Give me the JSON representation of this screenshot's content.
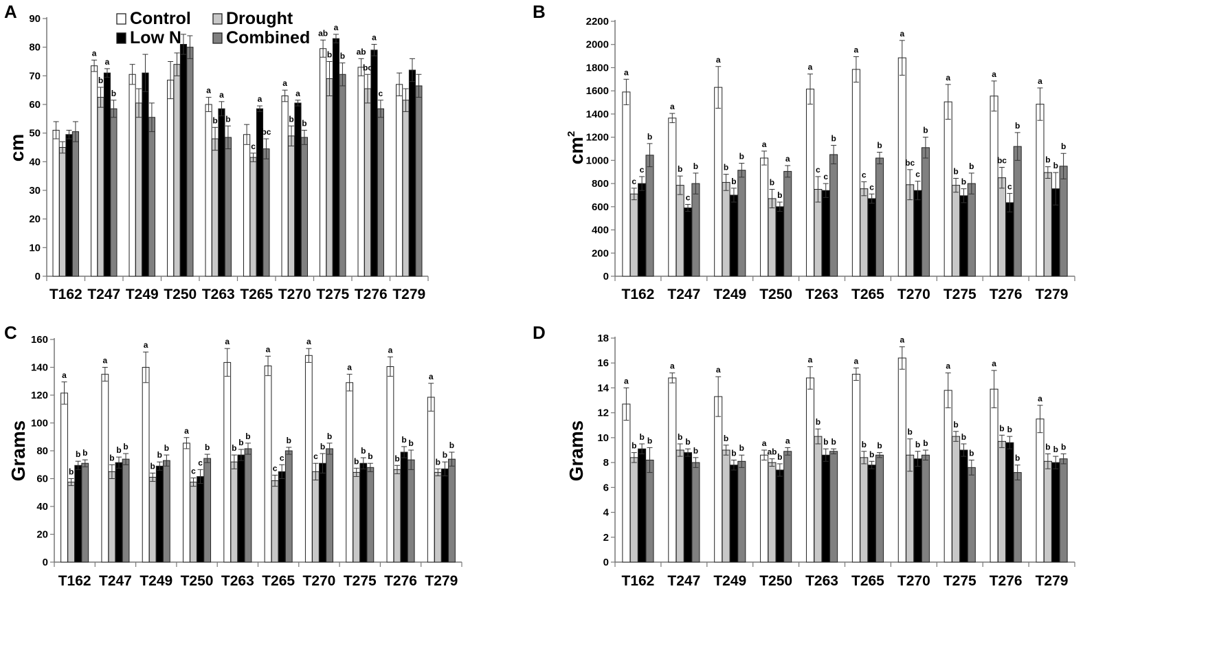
{
  "figure": {
    "series_names": [
      "Control",
      "Drought",
      "Low N",
      "Combined"
    ],
    "series_colors": [
      "#ffffff",
      "#c8c8c8",
      "#000000",
      "#808080"
    ]
  },
  "chart_data": [
    {
      "panel": "A",
      "type": "bar",
      "ylabel": "cm",
      "ylim": [
        0,
        90
      ],
      "yticks": [
        0,
        10,
        20,
        30,
        40,
        50,
        60,
        70,
        80,
        90
      ],
      "categories": [
        "T162",
        "T247",
        "T249",
        "T250",
        "T263",
        "T265",
        "T270",
        "T275",
        "T276",
        "T279"
      ],
      "legend": [
        "Control",
        "Drought",
        "Low N",
        "Combined"
      ],
      "series": [
        {
          "name": "Control",
          "values": [
            51,
            73.5,
            70.5,
            68.5,
            60,
            49.5,
            63,
            79.5,
            73,
            67
          ],
          "errors": [
            3,
            2,
            3.5,
            6.5,
            2.5,
            3.5,
            2,
            3,
            3,
            4
          ],
          "labels": [
            "",
            "a",
            "",
            "",
            "a",
            "",
            "a",
            "ab",
            "ab",
            ""
          ]
        },
        {
          "name": "Drought",
          "values": [
            45,
            62.5,
            60.5,
            74,
            48,
            41.5,
            49,
            69,
            65.5,
            61.5
          ],
          "errors": [
            2,
            3.5,
            5,
            4,
            4,
            1.5,
            3.5,
            6,
            5,
            4
          ],
          "labels": [
            "",
            "b",
            "",
            "",
            "b",
            "c",
            "b",
            "b",
            "bc",
            ""
          ]
        },
        {
          "name": "Low N",
          "values": [
            49.5,
            71,
            71,
            81,
            58.5,
            58.5,
            60.5,
            83,
            79,
            72
          ],
          "errors": [
            1.5,
            1.5,
            6.5,
            3.5,
            2.5,
            1,
            1,
            1.5,
            2,
            4
          ],
          "labels": [
            "",
            "a",
            "",
            "",
            "a",
            "a",
            "a",
            "a",
            "a",
            ""
          ]
        },
        {
          "name": "Combined",
          "values": [
            50.5,
            58.5,
            55.5,
            80,
            48.5,
            44.5,
            48.5,
            70.5,
            58.5,
            66.5
          ],
          "errors": [
            3.5,
            3,
            5,
            4,
            4,
            3.5,
            2.5,
            4,
            3,
            4
          ],
          "labels": [
            "",
            "b",
            "",
            "",
            "b",
            "bc",
            "b",
            "b",
            "c",
            ""
          ]
        }
      ]
    },
    {
      "panel": "B",
      "type": "bar",
      "ylabel": "cm²",
      "ylim": [
        0,
        2200
      ],
      "yticks": [
        0,
        200,
        400,
        600,
        800,
        1000,
        1200,
        1400,
        1600,
        1800,
        2000,
        2200
      ],
      "categories": [
        "T162",
        "T247",
        "T249",
        "T250",
        "T263",
        "T265",
        "T270",
        "T275",
        "T276",
        "T279"
      ],
      "series": [
        {
          "name": "Control",
          "values": [
            1590,
            1365,
            1630,
            1020,
            1615,
            1785,
            1885,
            1505,
            1555,
            1485
          ],
          "errors": [
            110,
            40,
            180,
            60,
            130,
            110,
            150,
            150,
            130,
            140
          ],
          "labels": [
            "a",
            "a",
            "a",
            "a",
            "a",
            "a",
            "a",
            "a",
            "a",
            "a"
          ]
        },
        {
          "name": "Drought",
          "values": [
            710,
            785,
            810,
            670,
            750,
            755,
            790,
            785,
            850,
            895
          ],
          "errors": [
            50,
            80,
            70,
            80,
            110,
            60,
            130,
            60,
            90,
            50
          ],
          "labels": [
            "c",
            "b",
            "b",
            "b",
            "c",
            "c",
            "bc",
            "b",
            "bc",
            "b"
          ]
        },
        {
          "name": "Low N",
          "values": [
            800,
            590,
            700,
            600,
            740,
            670,
            740,
            695,
            635,
            755
          ],
          "errors": [
            60,
            30,
            60,
            40,
            60,
            40,
            80,
            60,
            80,
            140
          ],
          "labels": [
            "c",
            "c",
            "b",
            "b",
            "c",
            "c",
            "c",
            "b",
            "c",
            "b"
          ]
        },
        {
          "name": "Combined",
          "values": [
            1045,
            800,
            915,
            905,
            1050,
            1020,
            1110,
            800,
            1120,
            950
          ],
          "errors": [
            100,
            90,
            60,
            50,
            80,
            50,
            90,
            90,
            120,
            110
          ],
          "labels": [
            "b",
            "b",
            "b",
            "a",
            "b",
            "b",
            "b",
            "b",
            "b",
            "b"
          ]
        }
      ]
    },
    {
      "panel": "C",
      "type": "bar",
      "ylabel": "Grams",
      "ylim": [
        0,
        160
      ],
      "yticks": [
        0,
        20,
        40,
        60,
        80,
        100,
        120,
        140,
        160
      ],
      "categories": [
        "T162",
        "T247",
        "T249",
        "T250",
        "T263",
        "T265",
        "T270",
        "T275",
        "T276",
        "T279"
      ],
      "series": [
        {
          "name": "Control",
          "values": [
            121.5,
            135,
            140,
            85.5,
            143.5,
            141,
            148.5,
            129,
            140.5,
            118.5
          ],
          "errors": [
            8,
            5,
            11,
            4,
            10,
            7,
            5,
            6,
            7,
            10
          ],
          "labels": [
            "a",
            "a",
            "a",
            "a",
            "a",
            "a",
            "a",
            "a",
            "a",
            "a"
          ]
        },
        {
          "name": "Drought",
          "values": [
            57.5,
            65,
            61,
            57.5,
            72,
            58.5,
            65,
            64.5,
            66.5,
            64.5
          ],
          "errors": [
            2.5,
            5,
            3,
            3,
            5,
            4,
            6,
            3,
            3,
            2.5
          ],
          "labels": [
            "b",
            "b",
            "b",
            "c",
            "b",
            "c",
            "c",
            "b",
            "b",
            "b"
          ]
        },
        {
          "name": "Low N",
          "values": [
            69.5,
            71.5,
            69,
            61.5,
            77,
            65,
            71,
            71,
            79,
            67
          ],
          "errors": [
            3,
            4,
            3,
            5,
            4,
            5,
            7,
            4,
            4,
            5
          ],
          "labels": [
            "b",
            "b",
            "b",
            "c",
            "b",
            "c",
            "b",
            "b",
            "b",
            "b"
          ]
        },
        {
          "name": "Combined",
          "values": [
            71,
            74,
            73,
            74.5,
            81.5,
            80,
            81.5,
            68,
            73.5,
            74
          ],
          "errors": [
            2.5,
            4,
            4,
            3,
            4,
            2.5,
            4,
            3,
            7,
            5
          ],
          "labels": [
            "b",
            "b",
            "b",
            "b",
            "b",
            "b",
            "b",
            "b",
            "b",
            "b"
          ]
        }
      ]
    },
    {
      "panel": "D",
      "type": "bar",
      "ylabel": "Grams",
      "ylim": [
        0,
        18
      ],
      "yticks": [
        0,
        2,
        4,
        6,
        8,
        10,
        12,
        14,
        16,
        18
      ],
      "categories": [
        "T162",
        "T247",
        "T249",
        "T250",
        "T263",
        "T265",
        "T270",
        "T275",
        "T276",
        "T279"
      ],
      "series": [
        {
          "name": "Control",
          "values": [
            12.7,
            14.8,
            13.3,
            8.6,
            14.8,
            15.1,
            16.4,
            13.8,
            13.9,
            11.5
          ],
          "errors": [
            1.3,
            0.4,
            1.6,
            0.4,
            0.9,
            0.5,
            0.9,
            1.4,
            1.5,
            1.1
          ],
          "labels": [
            "a",
            "a",
            "a",
            "a",
            "a",
            "a",
            "a",
            "a",
            "a",
            "a"
          ]
        },
        {
          "name": "Drought",
          "values": [
            8.4,
            9.0,
            9.0,
            8.0,
            10.1,
            8.4,
            8.6,
            10.1,
            9.7,
            8.1
          ],
          "errors": [
            0.4,
            0.5,
            0.4,
            0.3,
            0.6,
            0.5,
            1.3,
            0.4,
            0.5,
            0.6
          ],
          "labels": [
            "b",
            "b",
            "b",
            "ab",
            "b",
            "b",
            "b",
            "b",
            "b",
            "b"
          ]
        },
        {
          "name": "Low N",
          "values": [
            9.1,
            8.8,
            7.8,
            7.4,
            8.6,
            7.8,
            8.3,
            9.0,
            9.6,
            8.0
          ],
          "errors": [
            0.4,
            0.3,
            0.4,
            0.5,
            0.5,
            0.3,
            0.6,
            0.5,
            0.5,
            0.5
          ],
          "labels": [
            "b",
            "b",
            "b",
            "b",
            "b",
            "b",
            "b",
            "b",
            "b",
            "b"
          ]
        },
        {
          "name": "Combined",
          "values": [
            8.2,
            8.0,
            8.1,
            8.9,
            8.9,
            8.6,
            8.6,
            7.6,
            7.2,
            8.3
          ],
          "errors": [
            1.0,
            0.4,
            0.5,
            0.3,
            0.2,
            0.2,
            0.4,
            0.6,
            0.6,
            0.4
          ],
          "labels": [
            "b",
            "b",
            "b",
            "a",
            "b",
            "b",
            "b",
            "b",
            "b",
            "b"
          ]
        }
      ]
    }
  ]
}
